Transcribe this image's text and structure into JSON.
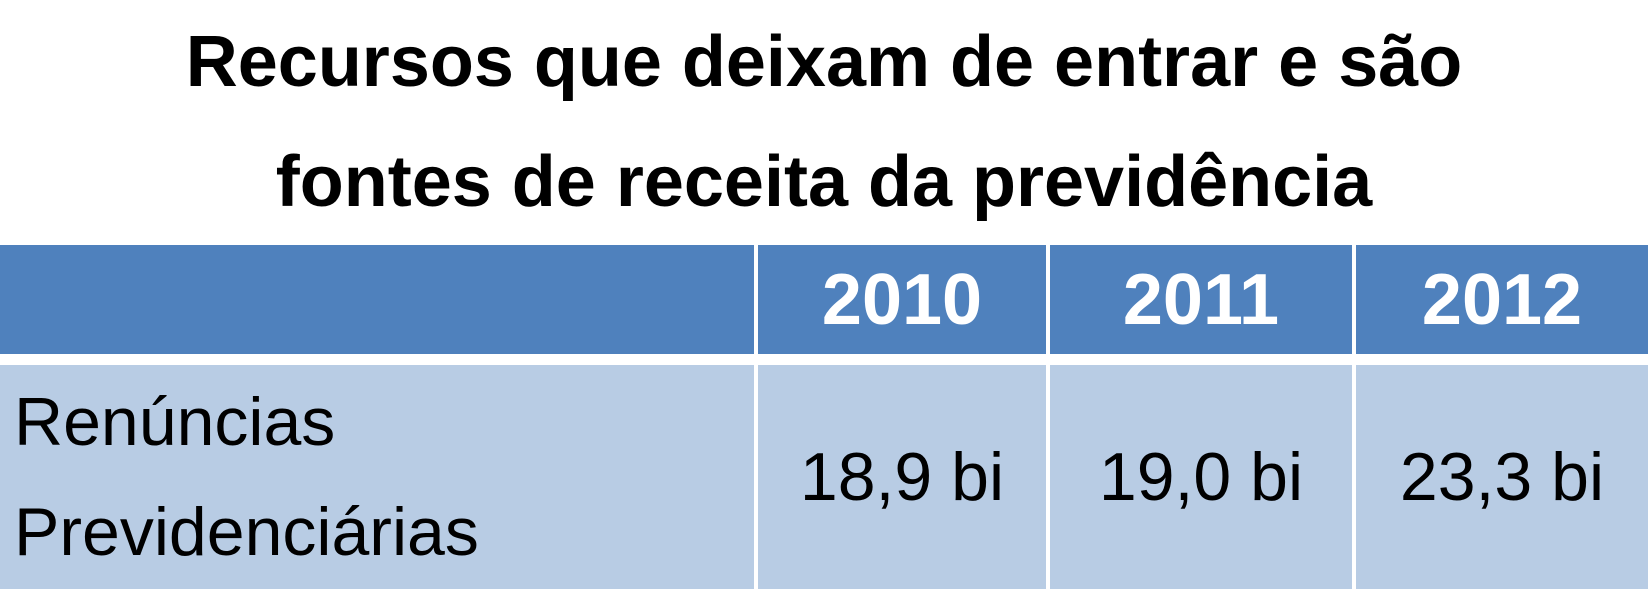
{
  "title": {
    "line1": "Recursos que deixam de entrar e são",
    "line2": "fontes de receita da previdência"
  },
  "table": {
    "header": [
      "2010",
      "2011",
      "2012"
    ],
    "rows": [
      [
        "Renúncias Previdenciárias",
        "18,9 bi",
        "19,0 bi",
        "23,3 bi"
      ]
    ]
  }
}
